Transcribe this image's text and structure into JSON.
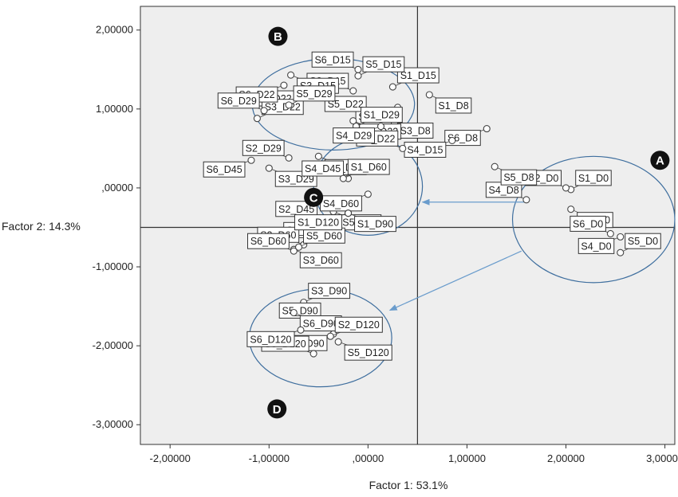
{
  "chart_data": {
    "type": "scatter",
    "xlabel": "Factor 1: 53.1%",
    "ylabel": "Factor 2: 14.3%",
    "xlim": [
      -2.3,
      3.1
    ],
    "ylim": [
      -3.25,
      2.3
    ],
    "x_ticks": [
      -2,
      -1,
      0,
      1,
      2,
      3
    ],
    "x_tick_labels": [
      "-2,00000",
      "-1,00000",
      ",00000",
      "1,00000",
      "2,00000",
      "3,00000"
    ],
    "y_ticks": [
      2,
      1,
      0,
      -1,
      -2,
      -3
    ],
    "y_tick_labels": [
      "2,00000",
      "1,00000",
      ",00000",
      "-1,00000",
      "-2,00000",
      "-3,00000"
    ],
    "reference_lines": {
      "x": 0.5,
      "y": -0.5
    },
    "points": [
      {
        "label": "S1_D0",
        "x": 2.05,
        "y": -0.02
      },
      {
        "label": "S2_D0",
        "x": 2.0,
        "y": 0.0
      },
      {
        "label": "S3_D0",
        "x": 2.05,
        "y": -0.27
      },
      {
        "label": "S4_D0",
        "x": 2.55,
        "y": -0.62
      },
      {
        "label": "S5_D0",
        "x": 2.55,
        "y": -0.82
      },
      {
        "label": "S6_D0",
        "x": 2.45,
        "y": -0.58
      },
      {
        "label": "S1_D8",
        "x": 0.62,
        "y": 1.18
      },
      {
        "label": "S2_D8",
        "x": 0.3,
        "y": 1.02
      },
      {
        "label": "S3_D8",
        "x": 0.25,
        "y": 0.58
      },
      {
        "label": "S4_D8",
        "x": 1.6,
        "y": -0.15
      },
      {
        "label": "S5_D8",
        "x": 1.28,
        "y": 0.27
      },
      {
        "label": "S6_D8",
        "x": 1.2,
        "y": 0.75
      },
      {
        "label": "S1_D15",
        "x": 0.25,
        "y": 1.28
      },
      {
        "label": "S2_D15",
        "x": -0.15,
        "y": 1.23
      },
      {
        "label": "S3_D15",
        "x": -0.78,
        "y": 1.43
      },
      {
        "label": "S4_D15",
        "x": 0.85,
        "y": 0.6
      },
      {
        "label": "S5_D15",
        "x": -0.1,
        "y": 1.42
      },
      {
        "label": "S6_D15",
        "x": -0.1,
        "y": 1.5
      },
      {
        "label": "S1_D22",
        "x": -0.15,
        "y": 0.85
      },
      {
        "label": "S2_D22",
        "x": -0.68,
        "y": 1.25
      },
      {
        "label": "S3_D22",
        "x": -1.12,
        "y": 0.88
      },
      {
        "label": "S4_D22",
        "x": 0.35,
        "y": 0.5
      },
      {
        "label": "S5_D22",
        "x": -0.5,
        "y": 1.2
      },
      {
        "label": "S6_D22",
        "x": -0.85,
        "y": 1.3
      },
      {
        "label": "S1_D29",
        "x": -0.12,
        "y": 0.78
      },
      {
        "label": "S2_D29",
        "x": -0.8,
        "y": 0.38
      },
      {
        "label": "S3_D29",
        "x": -1.0,
        "y": 0.25
      },
      {
        "label": "S4_D29",
        "x": 0.13,
        "y": 0.78
      },
      {
        "label": "S5_D29",
        "x": -0.8,
        "y": 1.05
      },
      {
        "label": "S6_D29",
        "x": -1.05,
        "y": 0.98
      },
      {
        "label": "S1_D45",
        "x": -0.5,
        "y": 0.4
      },
      {
        "label": "S2_D45",
        "x": -0.45,
        "y": -0.15
      },
      {
        "label": "S3_D45",
        "x": -0.9,
        "y": -0.68
      },
      {
        "label": "S4_D45",
        "x": -0.2,
        "y": 0.12
      },
      {
        "label": "S5_D45",
        "x": -0.35,
        "y": -0.3
      },
      {
        "label": "S6_D45",
        "x": -1.18,
        "y": 0.35
      },
      {
        "label": "S1_D60",
        "x": -0.25,
        "y": 0.12
      },
      {
        "label": "S2_D60",
        "x": -0.65,
        "y": -0.72
      },
      {
        "label": "S3_D60",
        "x": -0.75,
        "y": -0.78
      },
      {
        "label": "S4_D60",
        "x": 0.0,
        "y": -0.08
      },
      {
        "label": "S5_D60",
        "x": -0.7,
        "y": -0.75
      },
      {
        "label": "S6_D60",
        "x": -0.75,
        "y": -0.8
      },
      {
        "label": "S1_D90",
        "x": -0.2,
        "y": -0.32
      },
      {
        "label": "S2_D90",
        "x": -0.35,
        "y": -1.85
      },
      {
        "label": "S3_D90",
        "x": -0.65,
        "y": -1.45
      },
      {
        "label": "S5_D90",
        "x": -0.43,
        "y": -1.68
      },
      {
        "label": "S6_D90",
        "x": -0.75,
        "y": -1.58
      },
      {
        "label": "S1_D120",
        "x": -0.2,
        "y": -0.32
      },
      {
        "label": "S2_D120",
        "x": -0.38,
        "y": -1.88
      },
      {
        "label": "S3_D120",
        "x": -0.55,
        "y": -2.1
      },
      {
        "label": "S5_D120",
        "x": -0.3,
        "y": -1.95
      },
      {
        "label": "S6_D120",
        "x": -0.68,
        "y": -1.8
      }
    ],
    "clusters": [
      {
        "id": "A",
        "cx": 2.28,
        "cy": -0.4,
        "rx": 0.82,
        "ry": 0.8
      },
      {
        "id": "B",
        "cx": -0.35,
        "cy": 1.06,
        "rx": 0.82,
        "ry": 0.58
      },
      {
        "id": "C",
        "cx": 0.0,
        "cy": 0.02,
        "rx": 0.55,
        "ry": 0.62
      },
      {
        "id": "D",
        "cx": -0.48,
        "cy": -1.9,
        "rx": 0.72,
        "ry": 0.62
      }
    ],
    "markers": [
      {
        "text": "A",
        "x": 2.95,
        "y": 0.35
      },
      {
        "text": "B",
        "x": -0.91,
        "y": 1.92
      },
      {
        "text": "C",
        "x": -0.55,
        "y": -0.12
      },
      {
        "text": "D",
        "x": -0.92,
        "y": -2.8
      }
    ],
    "arrows": [
      {
        "from": [
          1.6,
          -0.18
        ],
        "to": [
          0.55,
          -0.18
        ]
      },
      {
        "from": [
          1.55,
          -0.8
        ],
        "to": [
          0.22,
          -1.55
        ]
      }
    ],
    "grid": false,
    "legend": "none"
  }
}
